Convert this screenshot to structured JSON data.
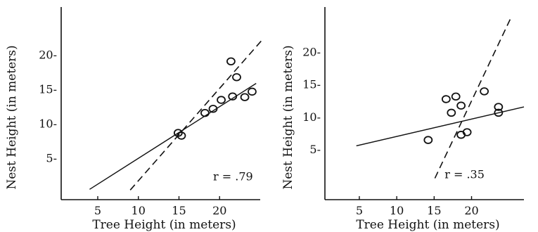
{
  "chart_data": [
    {
      "type": "scatter",
      "xlabel": "Tree Height (in meters)",
      "ylabel": "Nest Height (in meters)",
      "xlim": [
        0.5,
        25
      ],
      "ylim": [
        -1,
        27
      ],
      "xticks": [
        5,
        10,
        15,
        20
      ],
      "yticks": [
        5,
        10,
        15,
        20
      ],
      "ytick_labels": [
        "5-",
        "10-",
        "15-",
        "20-"
      ],
      "points": [
        {
          "x": 14.9,
          "y": 8.7
        },
        {
          "x": 15.3,
          "y": 8.3
        },
        {
          "x": 18.2,
          "y": 11.6
        },
        {
          "x": 19.2,
          "y": 12.2
        },
        {
          "x": 20.2,
          "y": 13.5
        },
        {
          "x": 21.4,
          "y": 19.1
        },
        {
          "x": 21.6,
          "y": 14.0
        },
        {
          "x": 22.1,
          "y": 16.8
        },
        {
          "x": 23.1,
          "y": 13.9
        },
        {
          "x": 24.0,
          "y": 14.7
        }
      ],
      "fit_line": {
        "x": [
          4,
          24.5
        ],
        "y": [
          0.5,
          15.9
        ]
      },
      "reference_line": {
        "x": [
          9,
          25.3
        ],
        "y": [
          0.4,
          22.3
        ]
      },
      "annotation": "r = .79",
      "annotation_position": {
        "x": 19.2,
        "y": 1.8
      }
    },
    {
      "type": "scatter",
      "xlabel": "Tree Height (in meters)",
      "ylabel": "Nest Height (in meters)",
      "xlim": [
        0.4,
        27
      ],
      "ylim": [
        -2.7,
        27
      ],
      "xticks": [
        5,
        10,
        15,
        20
      ],
      "yticks": [
        5,
        10,
        15,
        20
      ],
      "ytick_labels": [
        "5-",
        "10-",
        "15-",
        "20-"
      ],
      "points": [
        {
          "x": 14.2,
          "y": 6.5
        },
        {
          "x": 16.6,
          "y": 12.8
        },
        {
          "x": 17.3,
          "y": 10.7
        },
        {
          "x": 17.9,
          "y": 13.2
        },
        {
          "x": 18.6,
          "y": 11.8
        },
        {
          "x": 18.6,
          "y": 7.3
        },
        {
          "x": 19.4,
          "y": 7.7
        },
        {
          "x": 21.7,
          "y": 14.0
        },
        {
          "x": 23.6,
          "y": 11.6
        },
        {
          "x": 23.6,
          "y": 10.7
        }
      ],
      "fit_line": {
        "x": [
          4.6,
          27
        ],
        "y": [
          5.6,
          11.6
        ]
      },
      "reference_line": {
        "x": [
          15.1,
          25.2
        ],
        "y": [
          0.6,
          25.2
        ]
      },
      "annotation": "r = .35",
      "annotation_position": {
        "x": 16.4,
        "y": 0.6
      }
    }
  ]
}
